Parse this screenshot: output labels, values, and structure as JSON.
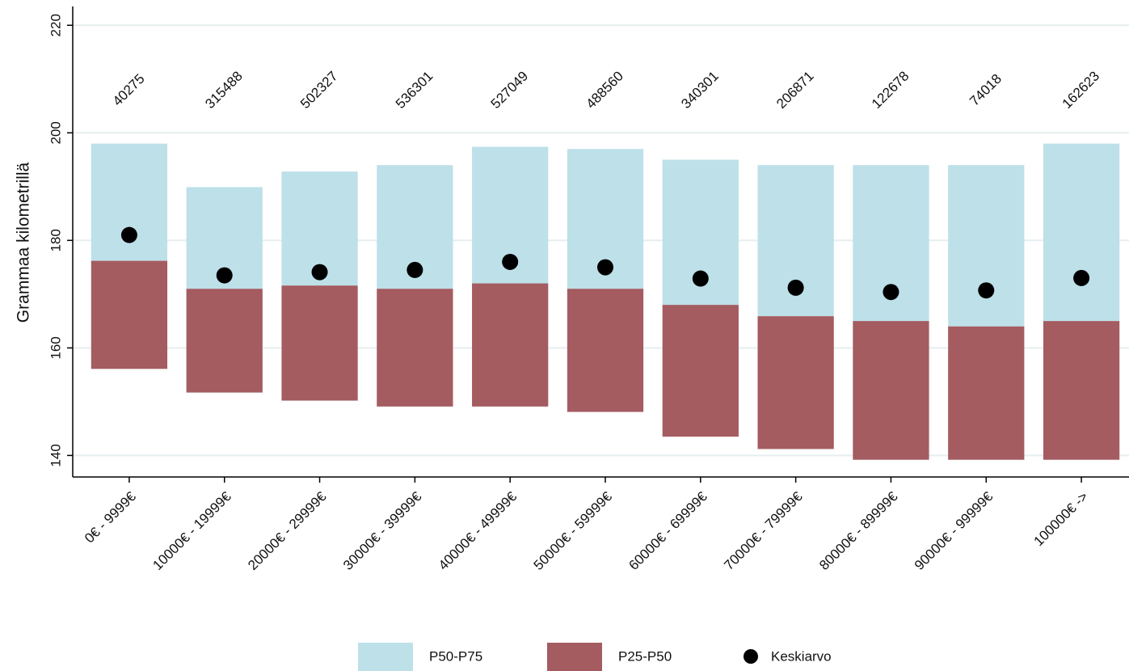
{
  "chart_data": {
    "type": "range-bar",
    "y_label": "Grammaa kilometrillä",
    "categories": [
      "0€ - 9999€",
      "10000€ - 19999€",
      "20000€ - 29999€",
      "30000€ - 39999€",
      "40000€ - 49999€",
      "50000€ - 59999€",
      "60000€ - 69999€",
      "70000€ - 79999€",
      "80000€ - 89999€",
      "90000€ - 99999€",
      "100000€ ->"
    ],
    "counts": [
      40275,
      315488,
      502327,
      536301,
      527049,
      488560,
      340301,
      206871,
      122678,
      74018,
      162623
    ],
    "median": [
      176.2,
      171.0,
      171.6,
      171.0,
      172.0,
      171.0,
      168.0,
      165.9,
      165.0,
      164.0,
      165.0
    ],
    "series": [
      {
        "name": "P50-P75",
        "color": "#bde0e9",
        "values": [
          198.0,
          189.9,
          192.8,
          194.0,
          197.4,
          197.0,
          195.0,
          194.0,
          194.0,
          194.0,
          198.0
        ]
      },
      {
        "name": "P25-P50",
        "color": "#a45c61",
        "values": [
          156.1,
          151.7,
          150.2,
          149.1,
          149.1,
          148.1,
          143.5,
          141.2,
          139.2,
          139.2,
          139.2
        ]
      },
      {
        "name": "Keskiarvo",
        "color": "#000000",
        "values": [
          181.0,
          173.5,
          174.1,
          174.5,
          176.0,
          175.0,
          172.9,
          171.2,
          170.4,
          170.7,
          173.0
        ]
      }
    ],
    "ylim": [
      136,
      223.5
    ],
    "yticks": [
      140,
      160,
      180,
      200,
      220
    ],
    "grid": true,
    "legend": "bottom"
  }
}
